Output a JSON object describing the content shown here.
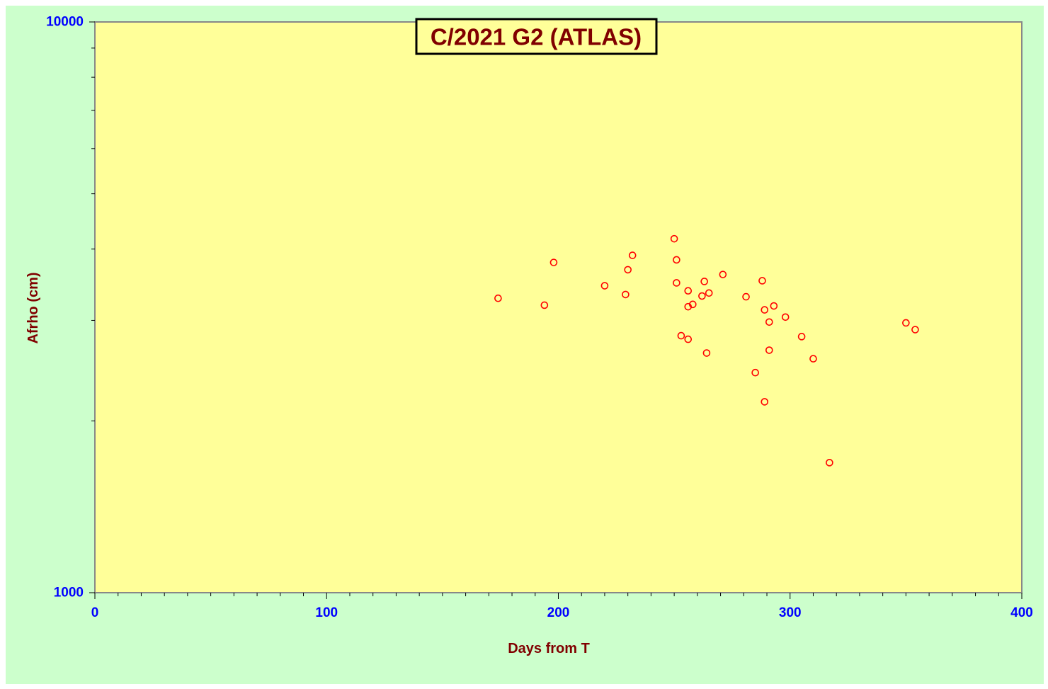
{
  "chart_data": {
    "type": "scatter",
    "title": "C/2021 G2 (ATLAS)",
    "xlabel": "Days from T",
    "ylabel": "Afrho (cm)",
    "xlim": [
      0,
      400
    ],
    "ylim": [
      1000,
      10000
    ],
    "yscale": "log",
    "xticks": [
      "0",
      "100",
      "200",
      "300",
      "400"
    ],
    "yticks": [
      "1000",
      "10000"
    ],
    "grid": false,
    "legend": "none",
    "colors": {
      "background": "#ccffcc",
      "plot_area": "#ffff99",
      "markers": "#ff0000",
      "tick_labels": "#0000ff",
      "titles": "#800000"
    },
    "points": [
      {
        "x": 174,
        "y": 3280
      },
      {
        "x": 194,
        "y": 3190
      },
      {
        "x": 198,
        "y": 3790
      },
      {
        "x": 220,
        "y": 3450
      },
      {
        "x": 229,
        "y": 3330
      },
      {
        "x": 230,
        "y": 3680
      },
      {
        "x": 232,
        "y": 3900
      },
      {
        "x": 250,
        "y": 4170
      },
      {
        "x": 251,
        "y": 3830
      },
      {
        "x": 251,
        "y": 3490
      },
      {
        "x": 253,
        "y": 2820
      },
      {
        "x": 256,
        "y": 3380
      },
      {
        "x": 256,
        "y": 3170
      },
      {
        "x": 256,
        "y": 2780
      },
      {
        "x": 258,
        "y": 3200
      },
      {
        "x": 262,
        "y": 3310
      },
      {
        "x": 263,
        "y": 3510
      },
      {
        "x": 264,
        "y": 2630
      },
      {
        "x": 265,
        "y": 3350
      },
      {
        "x": 271,
        "y": 3610
      },
      {
        "x": 281,
        "y": 3300
      },
      {
        "x": 285,
        "y": 2430
      },
      {
        "x": 288,
        "y": 3520
      },
      {
        "x": 289,
        "y": 3130
      },
      {
        "x": 289,
        "y": 2160
      },
      {
        "x": 291,
        "y": 2980
      },
      {
        "x": 291,
        "y": 2660
      },
      {
        "x": 293,
        "y": 3180
      },
      {
        "x": 298,
        "y": 3040
      },
      {
        "x": 305,
        "y": 2810
      },
      {
        "x": 310,
        "y": 2570
      },
      {
        "x": 317,
        "y": 1690
      },
      {
        "x": 350,
        "y": 2970
      },
      {
        "x": 354,
        "y": 2890
      }
    ]
  }
}
